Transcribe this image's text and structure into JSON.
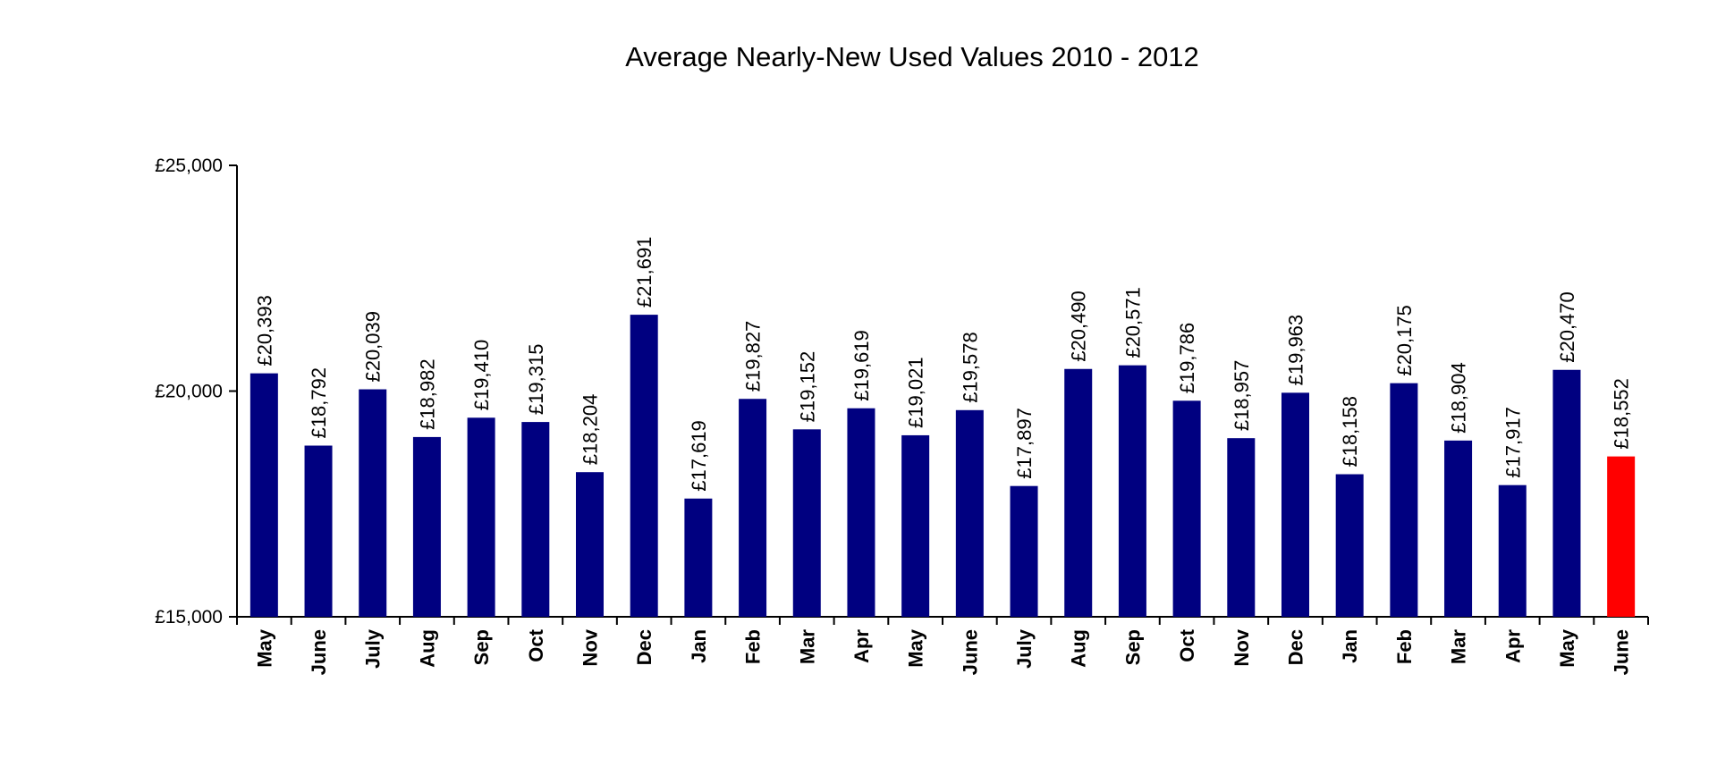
{
  "chart_data": {
    "type": "bar",
    "title": "Average Nearly-New Used Values 2010 - 2012",
    "xlabel": "",
    "ylabel": "",
    "ylim": [
      15000,
      25000
    ],
    "yticks": [
      15000,
      20000,
      25000
    ],
    "ytick_labels": [
      "£15,000",
      "£20,000",
      "£25,000"
    ],
    "grid": false,
    "legend": "none",
    "colors": {
      "bar": "#000080",
      "highlight": "#ff0000"
    },
    "highlight_index": 25,
    "categories": [
      "May",
      "June",
      "July",
      "Aug",
      "Sep",
      "Oct",
      "Nov",
      "Dec",
      "Jan",
      "Feb",
      "Mar",
      "Apr",
      "May",
      "June",
      "July",
      "Aug",
      "Sep",
      "Oct",
      "Nov",
      "Dec",
      "Jan",
      "Feb",
      "Mar",
      "Apr",
      "May",
      "June"
    ],
    "values": [
      20393,
      18792,
      20039,
      18982,
      19410,
      19315,
      18204,
      21691,
      17619,
      19827,
      19152,
      19619,
      19021,
      19578,
      17897,
      20490,
      20571,
      19786,
      18957,
      19963,
      18158,
      20175,
      18904,
      17917,
      20470,
      18552
    ],
    "data_labels": [
      "£20,393",
      "£18,792",
      "£20,039",
      "£18,982",
      "£19,410",
      "£19,315",
      "£18,204",
      "£21,691",
      "£17,619",
      "£19,827",
      "£19,152",
      "£19,619",
      "£19,021",
      "£19,578",
      "£17,897",
      "£20,490",
      "£20,571",
      "£19,786",
      "£18,957",
      "£19,963",
      "£18,158",
      "£20,175",
      "£18,904",
      "£17,917",
      "£20,470",
      "£18,552"
    ]
  }
}
